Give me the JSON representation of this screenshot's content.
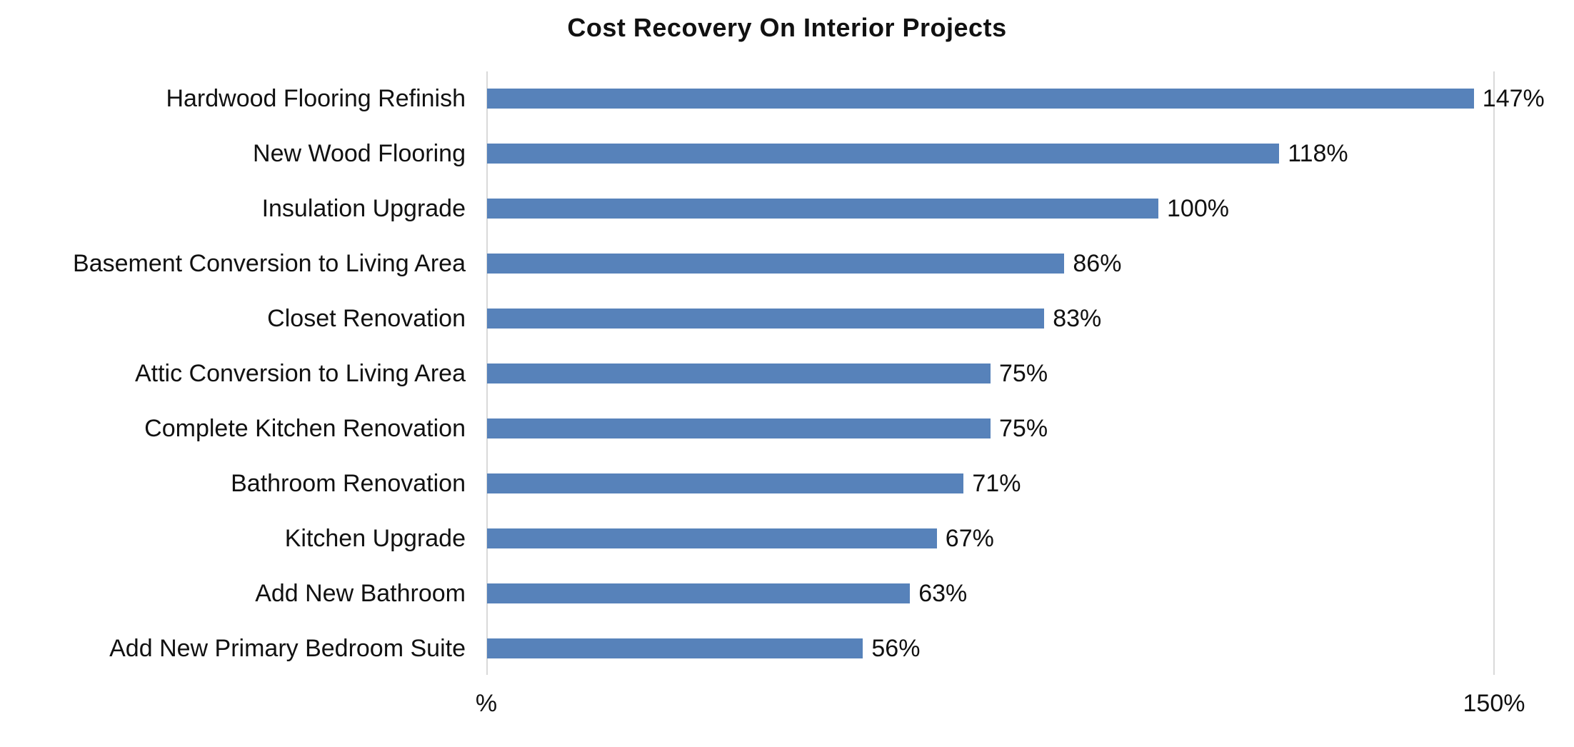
{
  "title": "Cost Recovery On Interior Projects",
  "colors": {
    "bar": "#5782ba",
    "grid": "#d9d9d9",
    "text": "#111111",
    "background": "#ffffff"
  },
  "chart_data": {
    "type": "bar",
    "orientation": "horizontal",
    "title": "Cost Recovery On Interior Projects",
    "categories": [
      "Hardwood Flooring Refinish",
      "New Wood Flooring",
      "Insulation Upgrade",
      "Basement Conversion to Living Area",
      "Closet Renovation",
      "Attic Conversion to Living Area",
      "Complete Kitchen Renovation",
      "Bathroom Renovation",
      "Kitchen Upgrade",
      "Add New Bathroom",
      "Add New Primary Bedroom Suite"
    ],
    "values": [
      147,
      118,
      100,
      86,
      83,
      75,
      75,
      71,
      67,
      63,
      56
    ],
    "value_labels": [
      "147%",
      "118%",
      "100%",
      "86%",
      "83%",
      "75%",
      "75%",
      "71%",
      "67%",
      "63%",
      "56%"
    ],
    "xlabel": "",
    "ylabel": "",
    "xlim": [
      0,
      150
    ],
    "x_ticks": [
      "%",
      "150%"
    ],
    "grid": "vertical lines at 0 and 150 only",
    "legend": "none",
    "bar_color": "#5782ba",
    "data_labels": "outside end of each bar"
  }
}
